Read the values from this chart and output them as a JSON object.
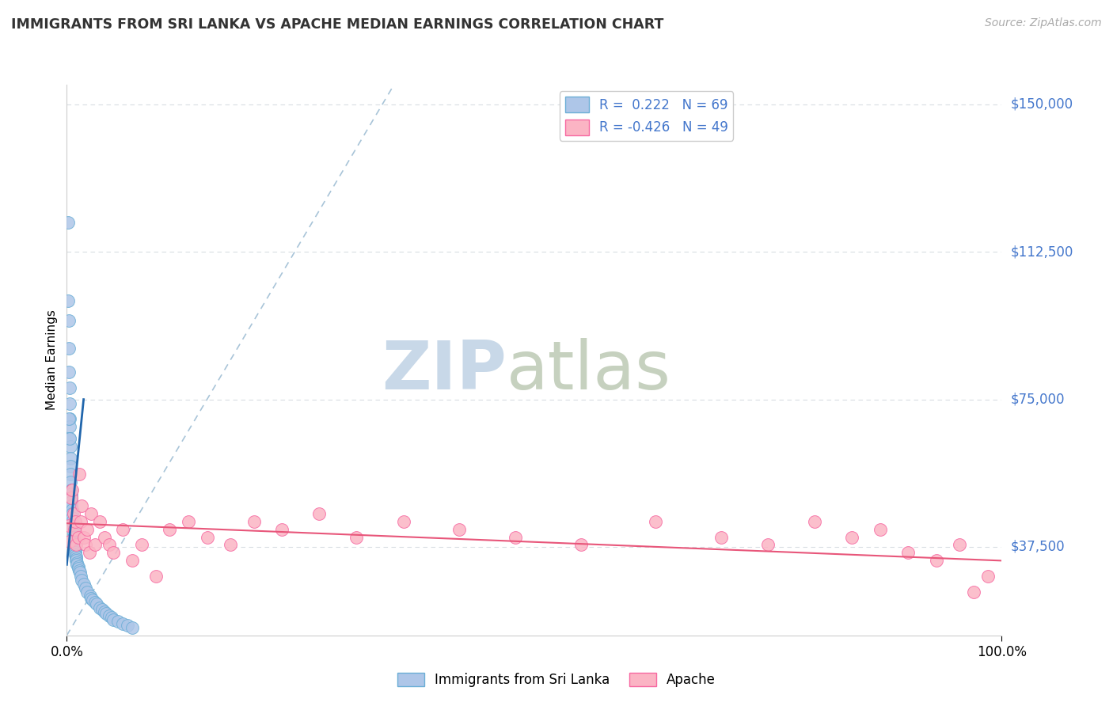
{
  "title": "IMMIGRANTS FROM SRI LANKA VS APACHE MEDIAN EARNINGS CORRELATION CHART",
  "source_text": "Source: ZipAtlas.com",
  "ylabel": "Median Earnings",
  "xlim": [
    0,
    1.0
  ],
  "ylim": [
    15000,
    155000
  ],
  "yticks": [
    37500,
    75000,
    112500,
    150000
  ],
  "ytick_labels": [
    "$37,500",
    "$75,000",
    "$112,500",
    "$150,000"
  ],
  "xtick_positions": [
    0,
    1.0
  ],
  "xtick_labels": [
    "0.0%",
    "100.0%"
  ],
  "legend_text1": "R =  0.222   N = 69",
  "legend_text2": "R = -0.426   N = 49",
  "blue_face": "#aec6e8",
  "blue_edge": "#6baed6",
  "pink_face": "#fbb4c4",
  "pink_edge": "#f768a1",
  "trend_blue_color": "#2166ac",
  "trend_pink_color": "#e8567a",
  "diag_color": "#a8c4d8",
  "grid_color": "#d8dde2",
  "ytick_color": "#4477cc",
  "legend_label_color": "#4477cc",
  "watermark_zip_color": "#c8d8e8",
  "watermark_atlas_color": "#c0ccb8",
  "blue_x": [
    0.001,
    0.001,
    0.002,
    0.002,
    0.002,
    0.003,
    0.003,
    0.003,
    0.003,
    0.003,
    0.004,
    0.004,
    0.004,
    0.004,
    0.004,
    0.005,
    0.005,
    0.005,
    0.005,
    0.005,
    0.006,
    0.006,
    0.006,
    0.006,
    0.007,
    0.007,
    0.007,
    0.007,
    0.007,
    0.007,
    0.008,
    0.008,
    0.008,
    0.009,
    0.009,
    0.009,
    0.009,
    0.01,
    0.01,
    0.01,
    0.011,
    0.011,
    0.012,
    0.012,
    0.013,
    0.014,
    0.015,
    0.016,
    0.018,
    0.02,
    0.022,
    0.025,
    0.026,
    0.028,
    0.03,
    0.032,
    0.035,
    0.038,
    0.04,
    0.042,
    0.045,
    0.048,
    0.05,
    0.055,
    0.06,
    0.065,
    0.07,
    0.002,
    0.003
  ],
  "blue_y": [
    120000,
    100000,
    95000,
    88000,
    82000,
    78000,
    74000,
    70000,
    68000,
    65000,
    63000,
    60000,
    58000,
    56000,
    54000,
    52000,
    51000,
    50000,
    49000,
    48000,
    47000,
    46000,
    45000,
    44000,
    43000,
    42000,
    41000,
    40000,
    40000,
    39000,
    38500,
    38000,
    37500,
    37000,
    36500,
    36000,
    35500,
    35000,
    34500,
    34000,
    33500,
    33000,
    32500,
    32000,
    31500,
    31000,
    30000,
    29000,
    28000,
    27000,
    26000,
    25000,
    24500,
    24000,
    23500,
    23000,
    22000,
    21500,
    21000,
    20500,
    20000,
    19500,
    19000,
    18500,
    18000,
    17500,
    17000,
    70000,
    65000
  ],
  "pink_x": [
    0.002,
    0.003,
    0.005,
    0.006,
    0.007,
    0.008,
    0.009,
    0.01,
    0.012,
    0.013,
    0.015,
    0.016,
    0.018,
    0.02,
    0.022,
    0.024,
    0.026,
    0.03,
    0.035,
    0.04,
    0.045,
    0.05,
    0.06,
    0.07,
    0.08,
    0.095,
    0.11,
    0.13,
    0.15,
    0.175,
    0.2,
    0.23,
    0.27,
    0.31,
    0.36,
    0.42,
    0.48,
    0.55,
    0.63,
    0.7,
    0.75,
    0.8,
    0.84,
    0.87,
    0.9,
    0.93,
    0.955,
    0.97,
    0.985
  ],
  "pink_y": [
    43000,
    39000,
    50000,
    52000,
    46000,
    42000,
    44000,
    38000,
    40000,
    56000,
    44000,
    48000,
    40000,
    38000,
    42000,
    36000,
    46000,
    38000,
    44000,
    40000,
    38000,
    36000,
    42000,
    34000,
    38000,
    30000,
    42000,
    44000,
    40000,
    38000,
    44000,
    42000,
    46000,
    40000,
    44000,
    42000,
    40000,
    38000,
    44000,
    40000,
    38000,
    44000,
    40000,
    42000,
    36000,
    34000,
    38000,
    26000,
    30000
  ],
  "blue_trend_x": [
    0.0,
    0.018
  ],
  "blue_trend_y": [
    33000,
    75000
  ],
  "pink_trend_x": [
    0.0,
    1.0
  ],
  "pink_trend_y": [
    43500,
    34000
  ]
}
